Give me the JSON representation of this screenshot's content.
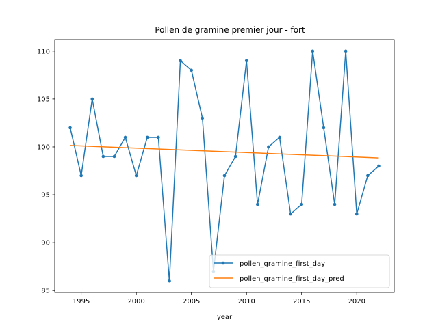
{
  "chart_data": {
    "type": "line",
    "title": "Pollen de gramine premier jour - fort",
    "xlabel": "year",
    "ylabel": "",
    "xlim": [
      1992.6,
      2023.4
    ],
    "ylim": [
      84.8,
      111.2
    ],
    "xticks": [
      1995,
      2000,
      2005,
      2010,
      2015,
      2020
    ],
    "yticks": [
      85,
      90,
      95,
      100,
      105,
      110
    ],
    "legend_position": "lower-right",
    "grid": false,
    "series": [
      {
        "name": "pollen_gramine_first_day",
        "color": "#1f77b4",
        "marker": "circle",
        "x": [
          1994,
          1995,
          1996,
          1997,
          1998,
          1999,
          2000,
          2001,
          2002,
          2003,
          2004,
          2005,
          2006,
          2007,
          2008,
          2009,
          2010,
          2011,
          2012,
          2013,
          2014,
          2015,
          2016,
          2017,
          2018,
          2019,
          2020,
          2021,
          2022
        ],
        "y": [
          102,
          97,
          105,
          99,
          99,
          101,
          97,
          101,
          101,
          86,
          109,
          108,
          103,
          87,
          97,
          99,
          109,
          94,
          100,
          101,
          93,
          94,
          110,
          102,
          94,
          110,
          93,
          97,
          98
        ]
      },
      {
        "name": "pollen_gramine_first_day_pred",
        "color": "#ff7f0e",
        "marker": "none",
        "x": [
          1994,
          2022
        ],
        "y": [
          100.15,
          98.85
        ]
      }
    ]
  }
}
